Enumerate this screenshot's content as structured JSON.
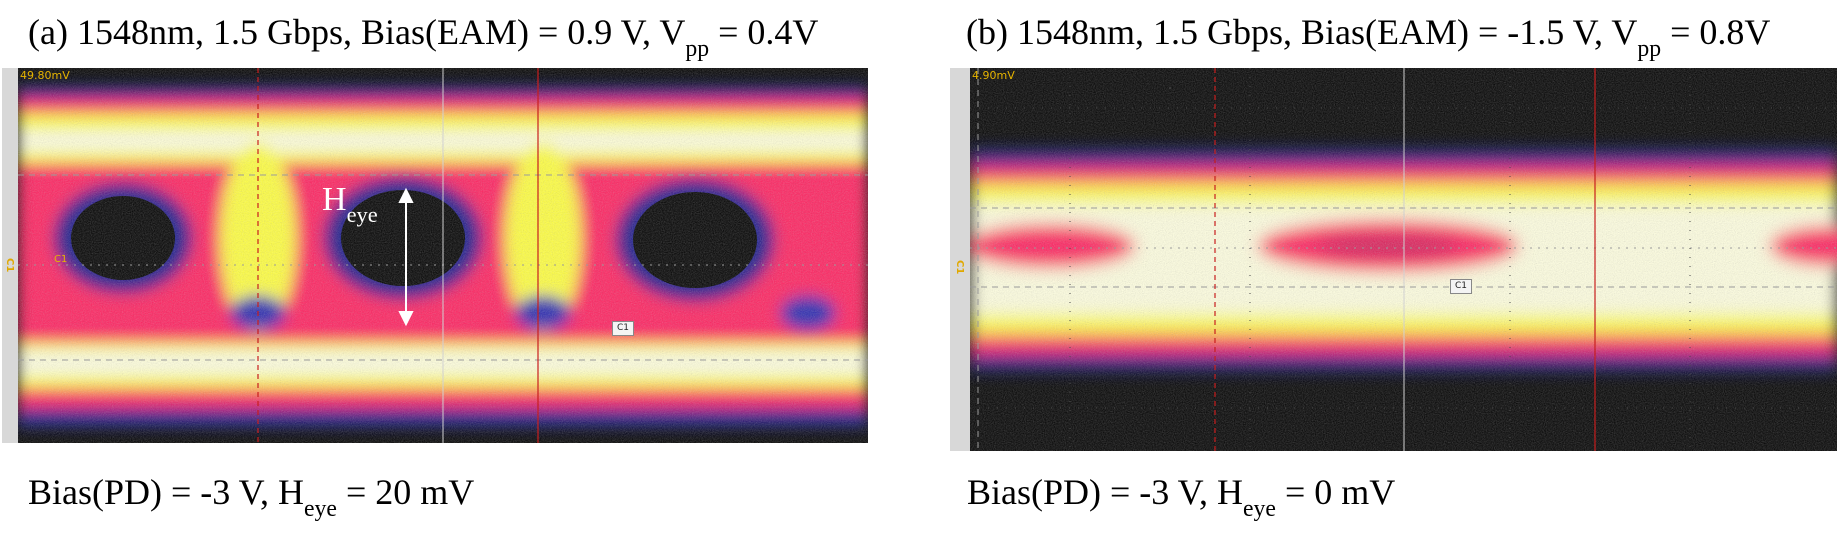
{
  "panel_a": {
    "label": "(a)",
    "title_main": "1548nm, 1.5 Gbps, Bias(EAM) = 0.9 V, V",
    "title_sub": "pp",
    "title_tail": " = 0.4V",
    "readout": "49.80mV",
    "marker_label": "C1",
    "channel_tag": "C1",
    "heye_base": "H",
    "heye_sub": "eye",
    "caption_main": "Bias(PD) = -3 V, H",
    "caption_sub": "eye",
    "caption_tail": " = 20 mV"
  },
  "panel_b": {
    "label": "(b)",
    "title_main": "1548nm, 1.5 Gbps, Bias(EAM) = -1.5 V, V",
    "title_sub": "pp",
    "title_tail": " = 0.8V",
    "readout": "4.90mV",
    "marker_label": "C1",
    "channel_tag": "C1",
    "caption_main": "Bias(PD) = -3 V, H",
    "caption_sub": "eye",
    "caption_tail": " = 0 mV"
  },
  "colors": {
    "scope_background": "#000000",
    "density_low": "#1a1a8c",
    "density_mid": "#ff2060",
    "density_high": "#ffff40",
    "density_peak": "#ffffe0",
    "grid": "#9a9a9a",
    "time_marker": "#c81e1e",
    "readout": "#e6b400"
  }
}
